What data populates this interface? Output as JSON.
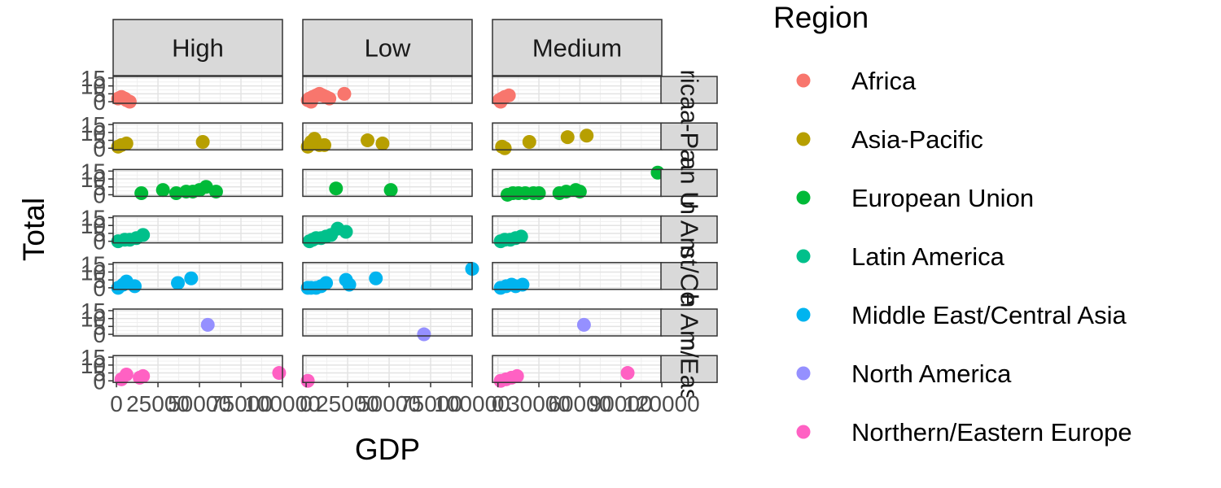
{
  "chart_data": {
    "type": "scatter",
    "title": "",
    "xlabel": "GDP",
    "ylabel": "Total",
    "grid": true,
    "legend_title": "Region",
    "legend_position": "right",
    "col_facets": [
      "High",
      "Low",
      "Medium"
    ],
    "row_facets": [
      "Africa",
      "Asia-Pacific",
      "European Union",
      "Latin America",
      "Middle East/Central Asia",
      "North America",
      "Northern/Eastern Europe"
    ],
    "row_strip_labels": [
      "rica",
      "a-Pa",
      "an U",
      "n Am",
      "st/Ce",
      "h Am",
      "n/Eas"
    ],
    "x_ranges": {
      "High": [
        -2000,
        100000
      ],
      "Low": [
        -2000,
        100000
      ],
      "Medium": [
        -4000,
        120000
      ]
    },
    "x_ticks": {
      "High": [
        0,
        25000,
        50000,
        75000,
        100000
      ],
      "Low": [
        0,
        25000,
        50000,
        75000,
        100000
      ],
      "Medium": [
        0,
        30000,
        60000,
        90000,
        120000
      ]
    },
    "x_tick_labels": {
      "High": [
        "0",
        "25000",
        "50000",
        "75000",
        "100000"
      ],
      "Low": [
        "0",
        "25000",
        "50000",
        "75000",
        "100000"
      ],
      "Medium": [
        "0",
        "30000",
        "60000",
        "90000",
        "120000"
      ]
    },
    "y_range": [
      -1,
      16
    ],
    "y_ticks": [
      0,
      5,
      10,
      15
    ],
    "y_tick_labels": [
      "0",
      "5",
      "10",
      "15"
    ],
    "series": [
      {
        "name": "Africa",
        "color": "#F8766D",
        "points": [
          {
            "col": "High",
            "x": 1000,
            "y": 2
          },
          {
            "col": "High",
            "x": 3000,
            "y": 3
          },
          {
            "col": "High",
            "x": 5000,
            "y": 2
          },
          {
            "col": "High",
            "x": 6000,
            "y": 1
          },
          {
            "col": "High",
            "x": 8000,
            "y": 0
          },
          {
            "col": "Low",
            "x": 1000,
            "y": 1
          },
          {
            "col": "Low",
            "x": 2000,
            "y": 2
          },
          {
            "col": "Low",
            "x": 4000,
            "y": 3
          },
          {
            "col": "Low",
            "x": 6000,
            "y": 4
          },
          {
            "col": "Low",
            "x": 8000,
            "y": 5
          },
          {
            "col": "Low",
            "x": 10000,
            "y": 4
          },
          {
            "col": "Low",
            "x": 12000,
            "y": 3
          },
          {
            "col": "Low",
            "x": 14000,
            "y": 2
          },
          {
            "col": "Low",
            "x": 23000,
            "y": 5
          },
          {
            "col": "Low",
            "x": 3000,
            "y": 0
          },
          {
            "col": "Medium",
            "x": 1000,
            "y": 1
          },
          {
            "col": "Medium",
            "x": 3000,
            "y": 2
          },
          {
            "col": "Medium",
            "x": 5000,
            "y": 3
          },
          {
            "col": "Medium",
            "x": 8000,
            "y": 4
          },
          {
            "col": "Medium",
            "x": 2000,
            "y": 0
          }
        ]
      },
      {
        "name": "Asia-Pacific",
        "color": "#B79F00",
        "points": [
          {
            "col": "High",
            "x": 1000,
            "y": 1
          },
          {
            "col": "High",
            "x": 3000,
            "y": 2
          },
          {
            "col": "High",
            "x": 6000,
            "y": 3
          },
          {
            "col": "High",
            "x": 52000,
            "y": 4
          },
          {
            "col": "Low",
            "x": 1000,
            "y": 1
          },
          {
            "col": "Low",
            "x": 3000,
            "y": 4
          },
          {
            "col": "Low",
            "x": 5000,
            "y": 6
          },
          {
            "col": "Low",
            "x": 8000,
            "y": 2
          },
          {
            "col": "Low",
            "x": 11000,
            "y": 2
          },
          {
            "col": "Low",
            "x": 37000,
            "y": 5
          },
          {
            "col": "Low",
            "x": 46000,
            "y": 3
          },
          {
            "col": "Medium",
            "x": 3000,
            "y": 1
          },
          {
            "col": "Medium",
            "x": 5000,
            "y": 0
          },
          {
            "col": "Medium",
            "x": 23000,
            "y": 4
          },
          {
            "col": "Medium",
            "x": 51000,
            "y": 7
          },
          {
            "col": "Medium",
            "x": 65000,
            "y": 8
          }
        ]
      },
      {
        "name": "European Union",
        "color": "#00BA38",
        "points": [
          {
            "col": "High",
            "x": 15000,
            "y": 1
          },
          {
            "col": "High",
            "x": 28000,
            "y": 3
          },
          {
            "col": "High",
            "x": 36000,
            "y": 1
          },
          {
            "col": "High",
            "x": 42000,
            "y": 2
          },
          {
            "col": "High",
            "x": 46000,
            "y": 2
          },
          {
            "col": "High",
            "x": 50000,
            "y": 3
          },
          {
            "col": "High",
            "x": 54000,
            "y": 5
          },
          {
            "col": "High",
            "x": 60000,
            "y": 2
          },
          {
            "col": "Low",
            "x": 18000,
            "y": 4
          },
          {
            "col": "Low",
            "x": 51000,
            "y": 3
          },
          {
            "col": "Medium",
            "x": 7000,
            "y": 0
          },
          {
            "col": "Medium",
            "x": 11000,
            "y": 1
          },
          {
            "col": "Medium",
            "x": 15000,
            "y": 1
          },
          {
            "col": "Medium",
            "x": 20000,
            "y": 1
          },
          {
            "col": "Medium",
            "x": 26000,
            "y": 1
          },
          {
            "col": "Medium",
            "x": 30000,
            "y": 1
          },
          {
            "col": "Medium",
            "x": 45000,
            "y": 1
          },
          {
            "col": "Medium",
            "x": 50000,
            "y": 2
          },
          {
            "col": "Medium",
            "x": 57000,
            "y": 3
          },
          {
            "col": "Medium",
            "x": 60000,
            "y": 2
          },
          {
            "col": "Medium",
            "x": 117000,
            "y": 14
          }
        ]
      },
      {
        "name": "Latin America",
        "color": "#00C08B",
        "points": [
          {
            "col": "High",
            "x": 1000,
            "y": 0
          },
          {
            "col": "High",
            "x": 5000,
            "y": 1
          },
          {
            "col": "High",
            "x": 8000,
            "y": 1
          },
          {
            "col": "High",
            "x": 12000,
            "y": 2
          },
          {
            "col": "High",
            "x": 16000,
            "y": 4
          },
          {
            "col": "Low",
            "x": 2000,
            "y": 0
          },
          {
            "col": "Low",
            "x": 4000,
            "y": 1
          },
          {
            "col": "Low",
            "x": 6000,
            "y": 2
          },
          {
            "col": "Low",
            "x": 9000,
            "y": 2
          },
          {
            "col": "Low",
            "x": 12000,
            "y": 3
          },
          {
            "col": "Low",
            "x": 15000,
            "y": 4
          },
          {
            "col": "Low",
            "x": 19000,
            "y": 8
          },
          {
            "col": "Low",
            "x": 24000,
            "y": 6
          },
          {
            "col": "Medium",
            "x": 2000,
            "y": 0
          },
          {
            "col": "Medium",
            "x": 5000,
            "y": 1
          },
          {
            "col": "Medium",
            "x": 9000,
            "y": 1
          },
          {
            "col": "Medium",
            "x": 13000,
            "y": 2
          },
          {
            "col": "Medium",
            "x": 17000,
            "y": 3
          }
        ]
      },
      {
        "name": "Middle East/Central Asia",
        "color": "#00B4EF",
        "points": [
          {
            "col": "High",
            "x": 1000,
            "y": 0
          },
          {
            "col": "High",
            "x": 4000,
            "y": 2
          },
          {
            "col": "High",
            "x": 6000,
            "y": 4
          },
          {
            "col": "High",
            "x": 11000,
            "y": 1
          },
          {
            "col": "High",
            "x": 37000,
            "y": 3
          },
          {
            "col": "High",
            "x": 45000,
            "y": 6
          },
          {
            "col": "Low",
            "x": 1000,
            "y": 0
          },
          {
            "col": "Low",
            "x": 3000,
            "y": 0
          },
          {
            "col": "Low",
            "x": 6000,
            "y": 0
          },
          {
            "col": "Low",
            "x": 9000,
            "y": 1
          },
          {
            "col": "Low",
            "x": 12000,
            "y": 3
          },
          {
            "col": "Low",
            "x": 24000,
            "y": 5
          },
          {
            "col": "Low",
            "x": 26000,
            "y": 2
          },
          {
            "col": "Low",
            "x": 42000,
            "y": 6
          },
          {
            "col": "Low",
            "x": 100000,
            "y": 12
          },
          {
            "col": "Medium",
            "x": 2000,
            "y": 0
          },
          {
            "col": "Medium",
            "x": 6000,
            "y": 1
          },
          {
            "col": "Medium",
            "x": 10000,
            "y": 2
          },
          {
            "col": "Medium",
            "x": 13000,
            "y": 1
          },
          {
            "col": "Medium",
            "x": 18000,
            "y": 2
          }
        ]
      },
      {
        "name": "North America",
        "color": "#9590FF",
        "points": [
          {
            "col": "High",
            "x": 55000,
            "y": 6
          },
          {
            "col": "Low",
            "x": 71000,
            "y": 0
          },
          {
            "col": "Medium",
            "x": 63000,
            "y": 6
          }
        ]
      },
      {
        "name": "Northern/Eastern Europe",
        "color": "#FF61C3",
        "points": [
          {
            "col": "High",
            "x": 3000,
            "y": 1
          },
          {
            "col": "High",
            "x": 6000,
            "y": 4
          },
          {
            "col": "High",
            "x": 14000,
            "y": 2
          },
          {
            "col": "High",
            "x": 16000,
            "y": 3
          },
          {
            "col": "High",
            "x": 98000,
            "y": 5
          },
          {
            "col": "Low",
            "x": 1000,
            "y": 0
          },
          {
            "col": "Medium",
            "x": 2000,
            "y": 0
          },
          {
            "col": "Medium",
            "x": 6000,
            "y": 1
          },
          {
            "col": "Medium",
            "x": 10000,
            "y": 2
          },
          {
            "col": "Medium",
            "x": 14000,
            "y": 3
          },
          {
            "col": "Medium",
            "x": 95000,
            "y": 5
          }
        ]
      }
    ]
  }
}
